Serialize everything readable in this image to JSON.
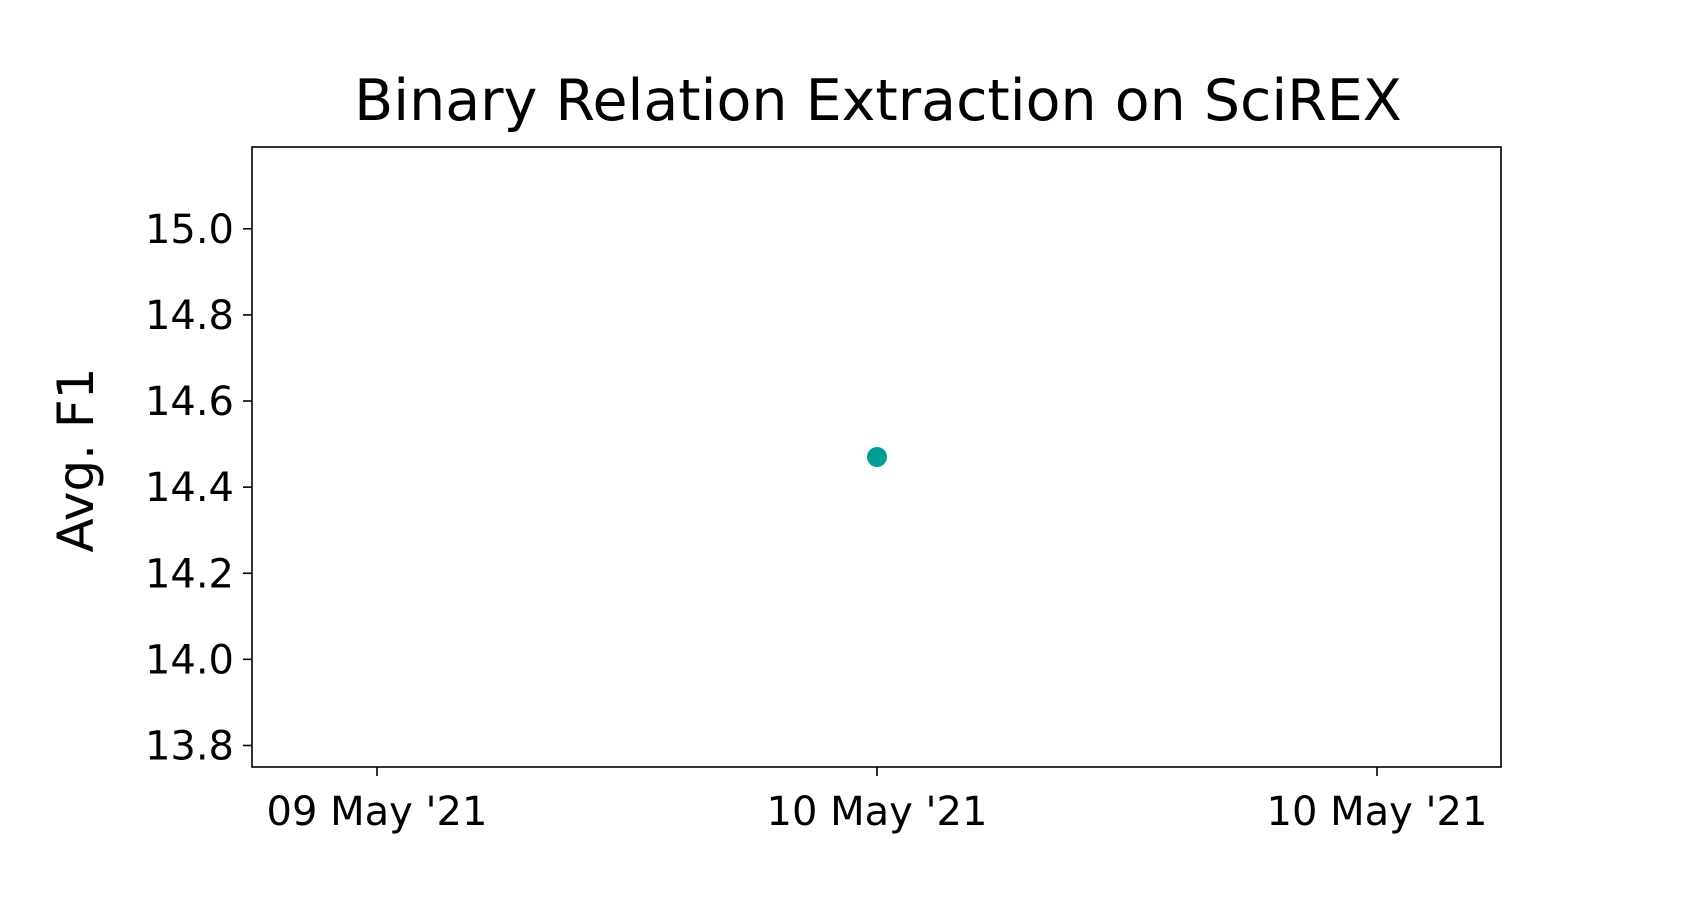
{
  "colors": {
    "point": "#009e96",
    "axes": "#000000",
    "background": "#ffffff"
  },
  "chart_data": {
    "type": "scatter",
    "title": "Binary Relation Extraction on SciREX",
    "xlabel": "",
    "ylabel": "Avg. F1",
    "x_tick_labels": [
      "09 May '21",
      "10 May '21",
      "10 May '21"
    ],
    "y_tick_labels": [
      "13.8",
      "14.0",
      "14.2",
      "14.4",
      "14.6",
      "14.8",
      "15.0"
    ],
    "y_ticks": [
      13.8,
      14.0,
      14.2,
      14.4,
      14.6,
      14.8,
      15.0
    ],
    "ylim": [
      13.75,
      15.19
    ],
    "xlim": [
      "09 May '21",
      "10 May '21"
    ],
    "grid": false,
    "legend": "none",
    "points": [
      {
        "x": "10 May '21",
        "y": 14.47
      }
    ]
  }
}
